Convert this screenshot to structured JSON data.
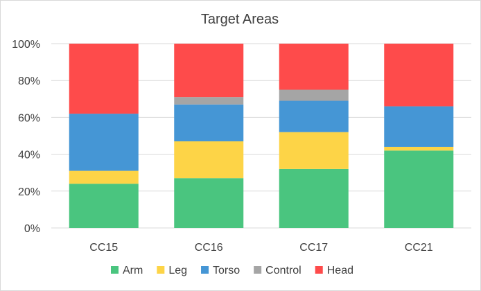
{
  "chart_data": {
    "type": "bar",
    "stacked": true,
    "percent": true,
    "title": "Target Areas",
    "categories": [
      "CC15",
      "CC16",
      "CC17",
      "CC21"
    ],
    "y_ticks": [
      "0%",
      "20%",
      "40%",
      "60%",
      "80%",
      "100%"
    ],
    "ylim": [
      0,
      100
    ],
    "grid": true,
    "legend_position": "bottom",
    "series": [
      {
        "name": "Arm",
        "color": "#4ac57f",
        "values": [
          24,
          27,
          32,
          42
        ]
      },
      {
        "name": "Leg",
        "color": "#fdd447",
        "values": [
          7,
          20,
          20,
          2
        ]
      },
      {
        "name": "Torso",
        "color": "#4596d5",
        "values": [
          31,
          20,
          17,
          22
        ]
      },
      {
        "name": "Control",
        "color": "#a5a5a5",
        "values": [
          0,
          4,
          6,
          0
        ]
      },
      {
        "name": "Head",
        "color": "#fe4b4b",
        "values": [
          38,
          29,
          25,
          34
        ]
      }
    ]
  }
}
